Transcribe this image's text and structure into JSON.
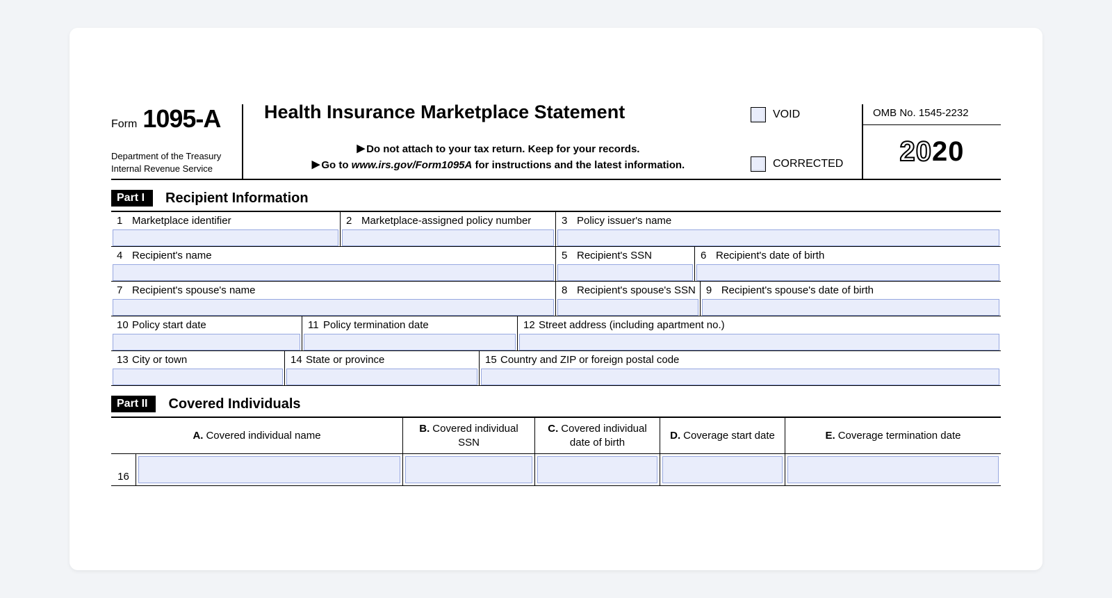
{
  "colors": {
    "page_bg": "#f2f4f7",
    "card_bg": "#ffffff",
    "text": "#000000",
    "input_fill": "#e9edfb",
    "input_border": "#97a8e0",
    "rule": "#000000"
  },
  "form": {
    "form_word": "Form",
    "form_number": "1095-A",
    "dept_line1": "Department of the Treasury",
    "dept_line2": "Internal Revenue Service",
    "title": "Health Insurance Marketplace Statement",
    "instruction_line1": "Do not attach to your tax return. Keep for your records.",
    "instruction_line2_prefix": "Go to ",
    "instruction_site": "www.irs.gov/Form1095A",
    "instruction_line2_suffix": " for instructions and the latest information.",
    "void_label": "VOID",
    "corrected_label": "CORRECTED",
    "omb": "OMB No. 1545-2232",
    "year_outline": "20",
    "year_solid": "20"
  },
  "part1": {
    "chip": "Part I",
    "title": "Recipient Information",
    "fields": {
      "f1": "Marketplace identifier",
      "f2": "Marketplace-assigned policy number",
      "f3": "Policy issuer's name",
      "f4": "Recipient's name",
      "f5": "Recipient's SSN",
      "f6": "Recipient's date of birth",
      "f7": "Recipient's spouse's name",
      "f8": "Recipient's spouse's SSN",
      "f9": "Recipient's spouse's date of birth",
      "f10": "Policy start date",
      "f11": "Policy termination date",
      "f12": "Street address (including apartment no.)",
      "f13": "City or town",
      "f14": "State or province",
      "f15": "Country and ZIP or foreign postal code"
    }
  },
  "part2": {
    "chip": "Part II",
    "title": "Covered Individuals",
    "columns": {
      "A": "Covered individual name",
      "B": "Covered individual SSN",
      "C": "Covered individual date of birth",
      "D": "Coverage start date",
      "E": "Coverage termination date"
    },
    "first_row_number": "16"
  }
}
